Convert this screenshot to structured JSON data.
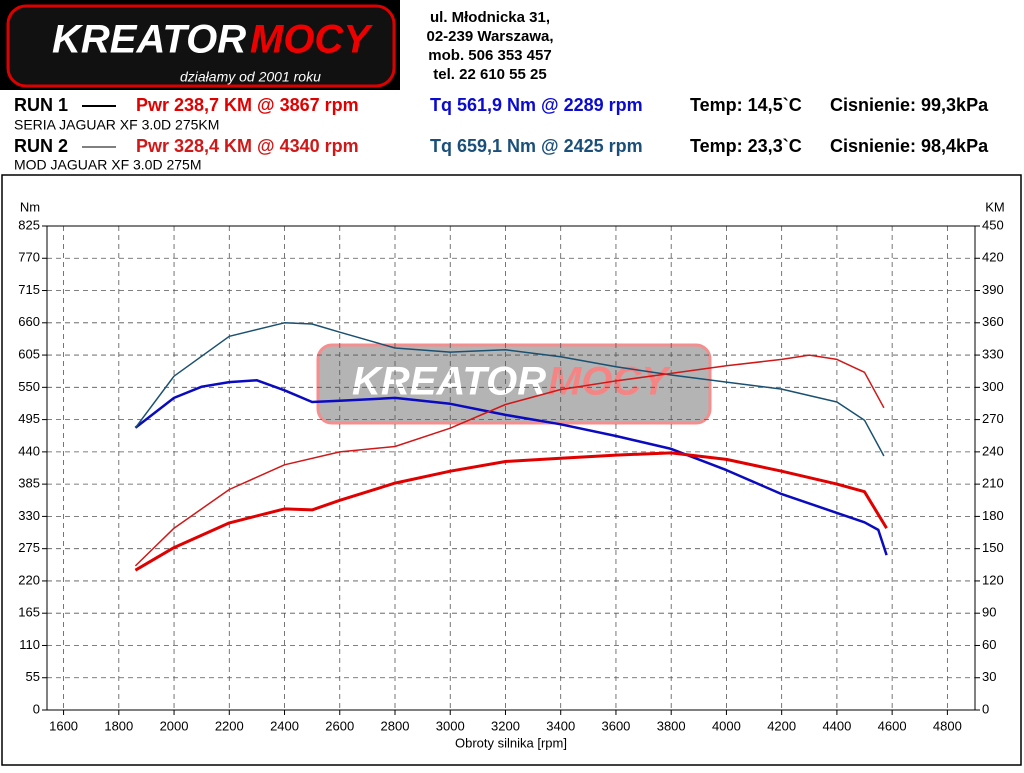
{
  "header": {
    "logo_a": "KREATOR",
    "logo_b": "MOCY",
    "slogan": "działamy od 2001 roku",
    "address": [
      "ul. Młodnicka 31,",
      "02-239  Warszawa,",
      "mob.  506 353 457",
      "tel.  22 610 55 25"
    ]
  },
  "runs": [
    {
      "label": "RUN 1",
      "power": "Pwr  238,7 KM @ 3867 rpm",
      "torque": "Tq 561,9 Nm @ 2289 rpm",
      "temp": "Temp: 14,5`C",
      "pressure": "Cisnienie: 99,3kPa",
      "car": "SERIA JAGUAR XF 3.0D 275KM"
    },
    {
      "label": "RUN 2",
      "power": "Pwr  328,4 KM @ 4340 rpm",
      "torque": "Tq 659,1 Nm @ 2425 rpm",
      "temp": "Temp: 23,3`C",
      "pressure": "Cisnienie: 98,4kPa",
      "car": "MOD JAGUAR XF 3.0D 275M"
    }
  ],
  "chart_data": {
    "type": "line",
    "xlabel": "Obroty silnika [rpm]",
    "ylabel": "Nm",
    "y2label": "KM",
    "xlim": [
      1540,
      4900
    ],
    "xticks": [
      1600,
      1800,
      2000,
      2200,
      2400,
      2600,
      2800,
      3000,
      3200,
      3400,
      3600,
      3800,
      4000,
      4200,
      4400,
      4600,
      4800
    ],
    "ylim": [
      0,
      825
    ],
    "yticks": [
      0,
      55,
      110,
      165,
      220,
      275,
      330,
      385,
      440,
      495,
      550,
      605,
      660,
      715,
      770,
      825
    ],
    "y2lim": [
      0,
      450
    ],
    "y2ticks": [
      0,
      30,
      60,
      90,
      120,
      150,
      180,
      210,
      240,
      270,
      300,
      330,
      360,
      390,
      420,
      450
    ],
    "grid": true,
    "series": [
      {
        "color": "#0a0ac0",
        "x": [
          1860,
          2000,
          2100,
          2200,
          2300,
          2400,
          2500,
          2600,
          2800,
          3000,
          3200,
          3400,
          3600,
          3800,
          4000,
          4200,
          4400,
          4500,
          4550,
          4580
        ],
        "values": [
          481,
          532,
          551,
          559,
          562,
          545,
          525,
          527,
          532,
          522,
          503,
          487,
          467,
          445,
          409,
          368,
          336,
          320,
          307,
          264
        ]
      },
      {
        "color": "#1a5070",
        "x": [
          1860,
          2000,
          2200,
          2400,
          2500,
          2600,
          2800,
          3000,
          3200,
          3400,
          3600,
          3800,
          4000,
          4200,
          4400,
          4500,
          4570
        ],
        "values": [
          481,
          569,
          637,
          660,
          658,
          644,
          617,
          610,
          614,
          602,
          585,
          571,
          559,
          547,
          525,
          494,
          433
        ]
      },
      {
        "color": "#e00000",
        "axis": "y2",
        "x": [
          1860,
          2000,
          2200,
          2400,
          2500,
          2600,
          2800,
          3000,
          3200,
          3400,
          3600,
          3800,
          4000,
          4200,
          4400,
          4500,
          4580
        ],
        "values": [
          130,
          151,
          174,
          187,
          186,
          195,
          211,
          222,
          231,
          234,
          237,
          239,
          233,
          222,
          210,
          203,
          169
        ]
      },
      {
        "color": "#d01818",
        "axis": "y2",
        "x": [
          1860,
          2000,
          2200,
          2400,
          2600,
          2800,
          3000,
          3200,
          3400,
          3600,
          3800,
          4000,
          4200,
          4300,
          4400,
          4500,
          4570
        ],
        "values": [
          134,
          169,
          205,
          228,
          240,
          245,
          262,
          284,
          298,
          306,
          313,
          320,
          326,
          330,
          326,
          314,
          281
        ]
      }
    ]
  }
}
